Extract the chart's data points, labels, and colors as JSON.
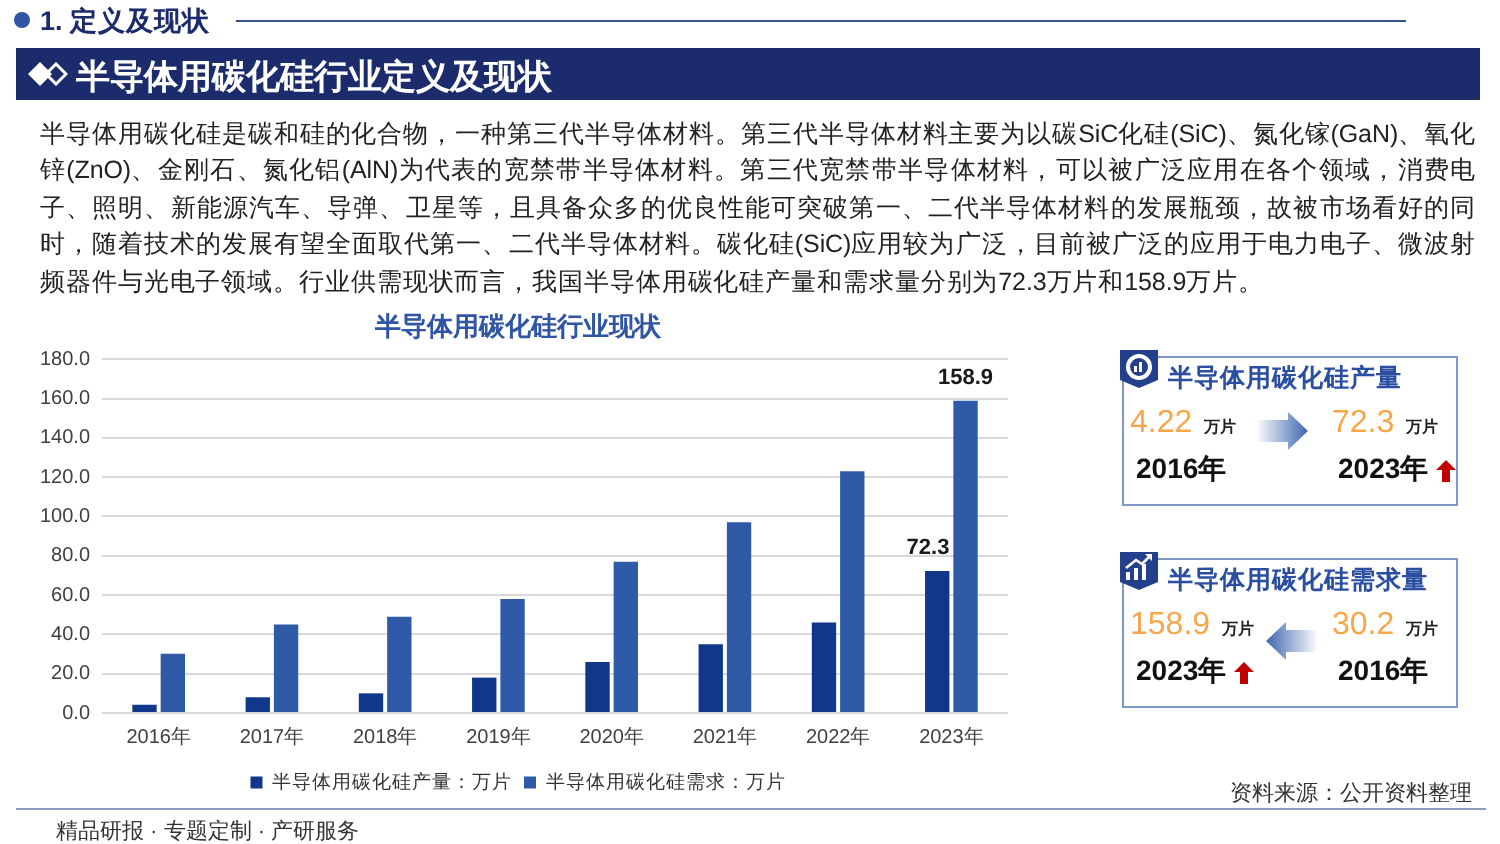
{
  "chart_data": [
    {
      "type": "bar",
      "title": "半导体用碳化硅行业现状",
      "categories": [
        "2016年",
        "2017年",
        "2018年",
        "2019年",
        "2020年",
        "2021年",
        "2022年",
        "2023年"
      ],
      "series": [
        {
          "name": "半导体用碳化硅产量：万片",
          "color": "#10378a",
          "values": [
            4.22,
            8,
            10,
            18,
            26,
            35,
            46,
            72.3
          ],
          "value_labels": [
            null,
            null,
            null,
            null,
            null,
            null,
            null,
            "72.3"
          ]
        },
        {
          "name": "半导体用碳化硅需求：万片",
          "color": "#2e5aa8",
          "values": [
            30.2,
            45,
            49,
            58,
            77,
            97,
            123,
            158.9
          ],
          "value_labels": [
            null,
            null,
            null,
            null,
            null,
            null,
            null,
            "158.9"
          ]
        }
      ],
      "ylim": [
        0,
        180
      ],
      "yticks": [
        {
          "value": 0,
          "label": "0.0"
        },
        {
          "value": 20,
          "label": "20.0"
        },
        {
          "value": 40,
          "label": "40.0"
        },
        {
          "value": 60,
          "label": "60.0"
        },
        {
          "value": 80,
          "label": "80.0"
        },
        {
          "value": 100,
          "label": "100.0"
        },
        {
          "value": 120,
          "label": "120.0"
        },
        {
          "value": 140,
          "label": "140.0"
        },
        {
          "value": 160,
          "label": "160.0"
        },
        {
          "value": 180,
          "label": "180.0"
        }
      ],
      "grid": "y",
      "legend": "bottom",
      "annotations": [
        "1. 定义及现状",
        "半导体用碳化硅行业定义及现状",
        "半导体用碳化硅是碳和硅的化合物，一种第三代半导体材料。第三代半导体材料主要为以碳SiC化硅(SiC)、氮化镓(GaN)、氧化锌(ZnO)、金刚石、氮化铝(AlN)为代表的宽禁带半导体材料。第三代宽禁带半导体材料，可以被广泛应用在各个领域，消费电子、照明、新能源汽车、导弹、卫星等，且具备众多的优良性能可突破第一、二代半导体材料的发展瓶颈，故被市场看好的同时，随着技术的发展有望全面取代第一、二代半导体材料。碳化硅(SiC)应用较为广泛，目前被广泛的应用于电力电子、微波射频器件与光电子领域。行业供需现状而言，我国半导体用碳化硅产量和需求量分别为72.3万片和158.9万片。",
        "资料来源：公开资料整理",
        "精品研报 · 专题定制 · 产研服务"
      ]
    },
    {
      "type": "other",
      "title": "半导体用碳化硅产量",
      "annotations": [
        "4.22",
        "万片",
        "2016年",
        "72.3",
        "万片",
        "2023年"
      ]
    },
    {
      "type": "other",
      "title": "半导体用碳化硅需求量",
      "annotations": [
        "158.9",
        "万片",
        "2023年",
        "30.2",
        "万片",
        "2016年"
      ]
    }
  ]
}
